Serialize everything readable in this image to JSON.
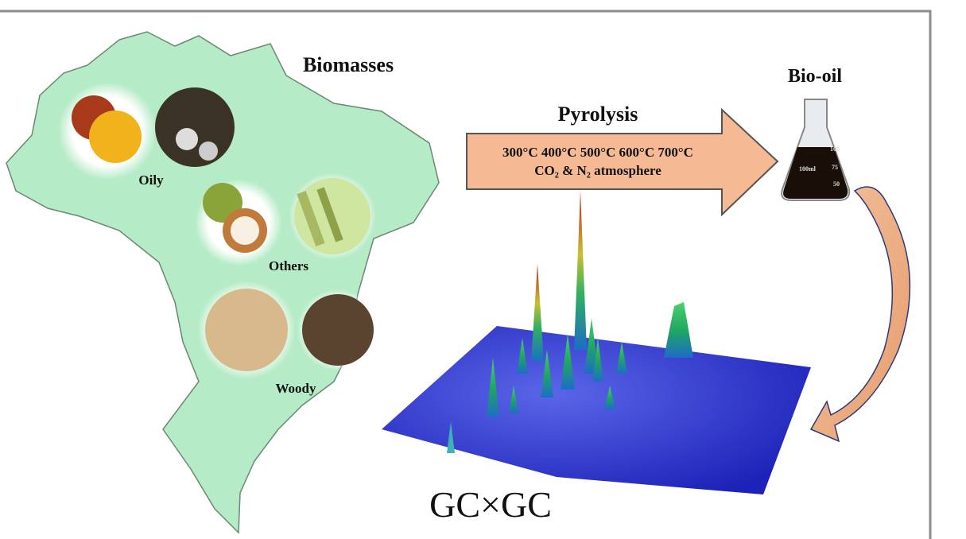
{
  "title_left": "Biomasses",
  "groups": [
    "Oily",
    "Others",
    "Woody"
  ],
  "process": {
    "name": "Pyrolysis",
    "temperatures": "300°C 400°C 500°C 600°C 700°C",
    "atmosphere": "CO₂ & N₂ atmosphere"
  },
  "product": "Bio-oil",
  "flask_marks": [
    "100",
    "75",
    "50",
    "100ml"
  ],
  "analysis": "GC×GC"
}
